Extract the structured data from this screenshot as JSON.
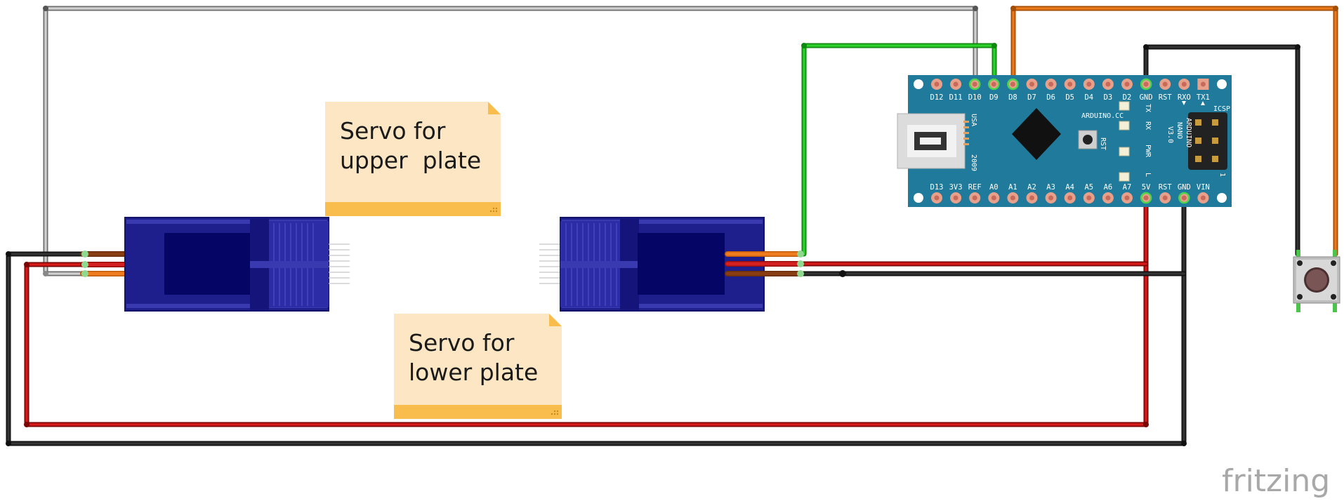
{
  "diagram": {
    "notes": {
      "upper": [
        "Servo for",
        "upper  plate"
      ],
      "lower": [
        "Servo for",
        "lower plate"
      ]
    },
    "arduino": {
      "top_pins": [
        "D12",
        "D11",
        "D10",
        "D9",
        "D8",
        "D7",
        "D6",
        "D5",
        "D4",
        "D3",
        "D2",
        "GND",
        "RST",
        "RXO",
        "TX1"
      ],
      "bottom_pins": [
        "D13",
        "3V3",
        "REF",
        "A0",
        "A1",
        "A2",
        "A3",
        "A4",
        "A5",
        "A6",
        "A7",
        "5V",
        "RST",
        "GND",
        "VIN"
      ],
      "labels": {
        "cc": "ARDUINO.CC",
        "usa": "USA",
        "year": "2009",
        "rst": "RST",
        "icsp": "ICSP",
        "model": [
          "ARDUINO",
          "NANO",
          "V3.0"
        ],
        "one": "1",
        "led_tx": "TX",
        "led_rx": "RX",
        "led_pwr": "PWR",
        "led_l": "L"
      }
    },
    "brand": "fritzing",
    "colors": {
      "board": "#1f7a9c",
      "servo": "#1e1e8c",
      "servo_window": "#050566",
      "note_bg": "#fde6c4",
      "note_bar": "#f9bd4d",
      "wire_gray": "#a0a0a0",
      "wire_green": "#1fbf1f",
      "wire_orange": "#e07010",
      "wire_red": "#cc1111",
      "wire_black": "#222222"
    }
  }
}
